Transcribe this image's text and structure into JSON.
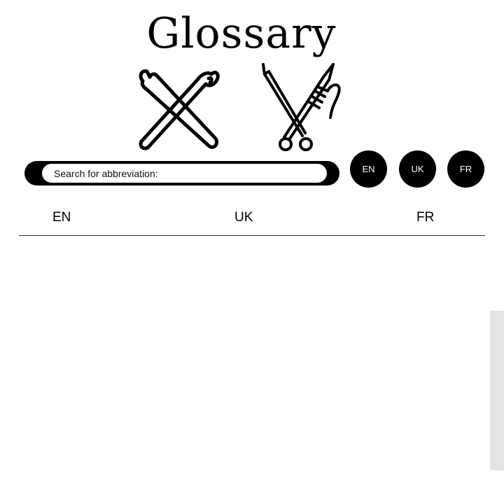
{
  "header": {
    "title": "Glossary"
  },
  "hero": {
    "left_icon": "crossed-crochet-hooks-icon",
    "right_icon": "knitting-needles-yarn-icon"
  },
  "search": {
    "placeholder": "Search for abbreviation:",
    "value": ""
  },
  "language_buttons": [
    {
      "label": "EN"
    },
    {
      "label": "UK"
    },
    {
      "label": "FR"
    }
  ],
  "table": {
    "columns": [
      "EN",
      "UK",
      "FR"
    ],
    "rows": []
  },
  "colors": {
    "background": "#ffffff",
    "foreground": "#000000",
    "divider": "#333333",
    "scrollbar_track": "#e3e3e5"
  }
}
